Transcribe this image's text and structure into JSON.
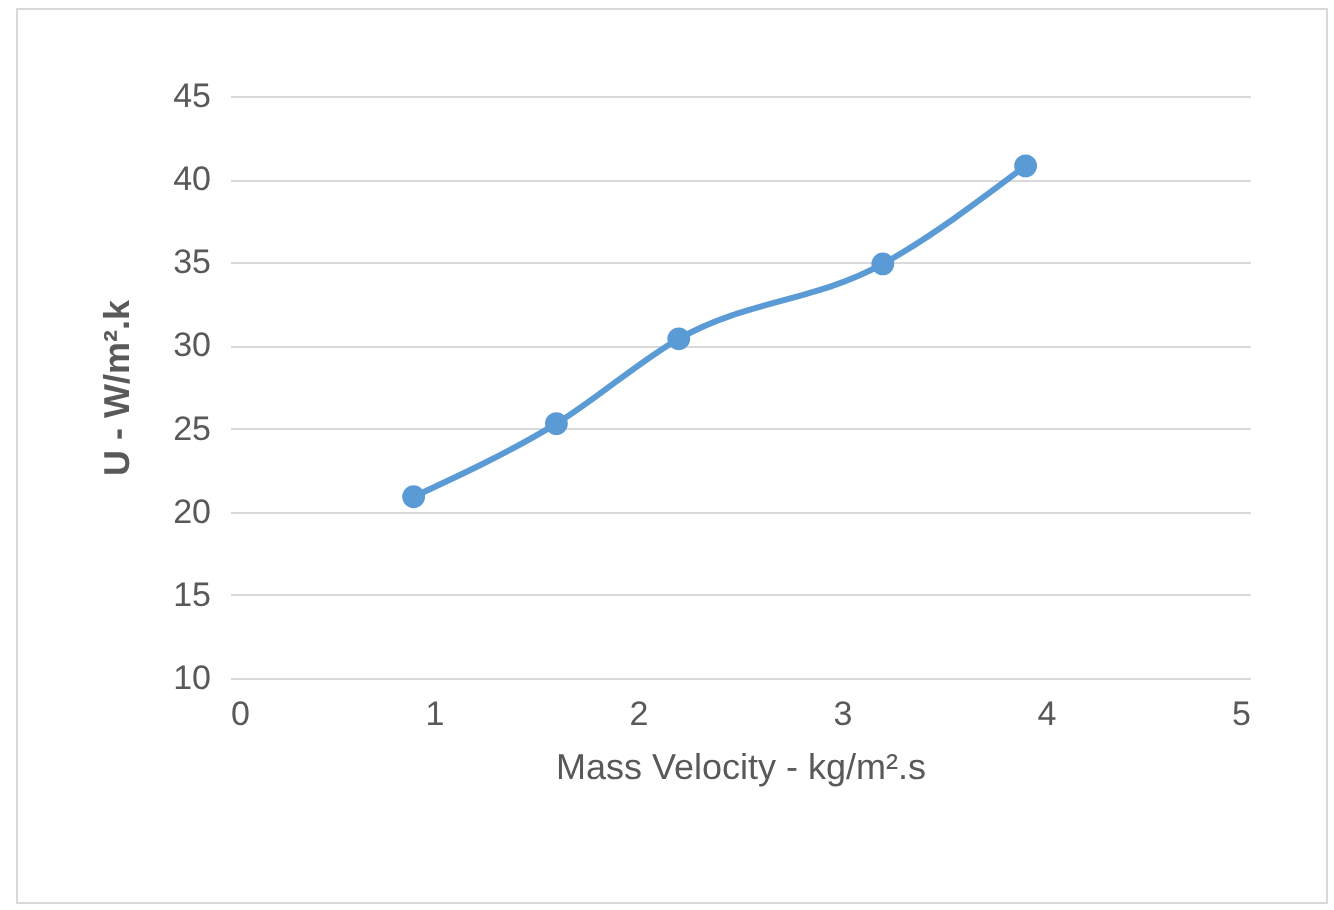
{
  "chart_data": {
    "type": "line",
    "xlabel": "Mass Velocity - kg/m².s",
    "ylabel": "U - W/m².k",
    "x": [
      0.9,
      1.6,
      2.2,
      3.2,
      3.9
    ],
    "series": [
      {
        "color": "#5b9bd5",
        "values": [
          20.9,
          25.3,
          30.4,
          34.9,
          40.8
        ]
      }
    ],
    "xlim": [
      0,
      5
    ],
    "xticks": [
      0,
      1,
      2,
      3,
      4,
      5
    ],
    "ylim": [
      10,
      45
    ],
    "yticks": [
      10,
      15,
      20,
      25,
      30,
      35,
      40,
      45
    ],
    "grid": "y",
    "marker": "circle",
    "line_style": "solid"
  }
}
